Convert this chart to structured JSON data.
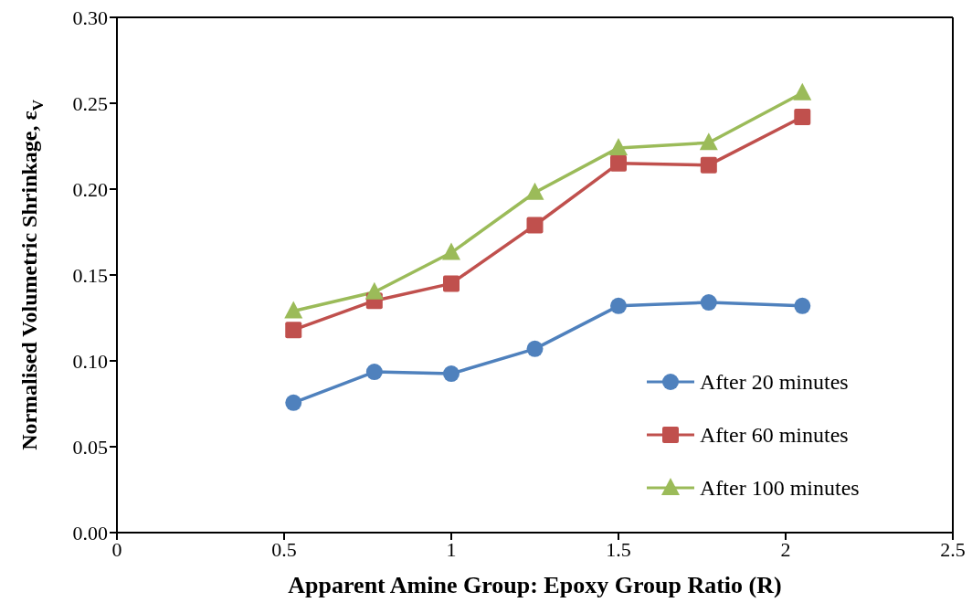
{
  "chart_data": {
    "type": "line",
    "xlabel": "Apparent Amine Group: Epoxy Group Ratio  (R)",
    "ylabel": "Normalised Volumetric Shrinkage, ε$_{V}$",
    "x": [
      0.528,
      0.77,
      1.0,
      1.25,
      1.5,
      1.77,
      2.05
    ],
    "series": [
      {
        "name": "After 20 minutes",
        "color": "#4f81bd",
        "marker": "circle",
        "values": [
          0.0756,
          0.0936,
          0.0925,
          0.107,
          0.132,
          0.134,
          0.132
        ]
      },
      {
        "name": "After 60 minutes",
        "color": "#c0504d",
        "marker": "square",
        "values": [
          0.118,
          0.135,
          0.145,
          0.179,
          0.215,
          0.214,
          0.242
        ]
      },
      {
        "name": "After 100 minutes",
        "color": "#9bbb59",
        "marker": "triangle",
        "values": [
          0.129,
          0.14,
          0.163,
          0.198,
          0.224,
          0.227,
          0.256
        ]
      }
    ],
    "xlim": [
      0,
      2.5
    ],
    "xticks": [
      0,
      0.5,
      1,
      1.5,
      2,
      2.5
    ],
    "ylim": [
      0,
      0.3
    ],
    "yticks": [
      {
        "value": 0,
        "label": "0.00"
      },
      {
        "value": 0.05,
        "label": "0.05"
      },
      {
        "value": 0.1,
        "label": "0.10"
      },
      {
        "value": 0.15,
        "label": "0.15"
      },
      {
        "value": 0.2,
        "label": "0.20"
      },
      {
        "value": 0.25,
        "label": "0.25"
      },
      {
        "value": 0.3,
        "label": "0.30"
      }
    ],
    "grid": false,
    "legend": "bottom right",
    "line_style": "solid"
  }
}
